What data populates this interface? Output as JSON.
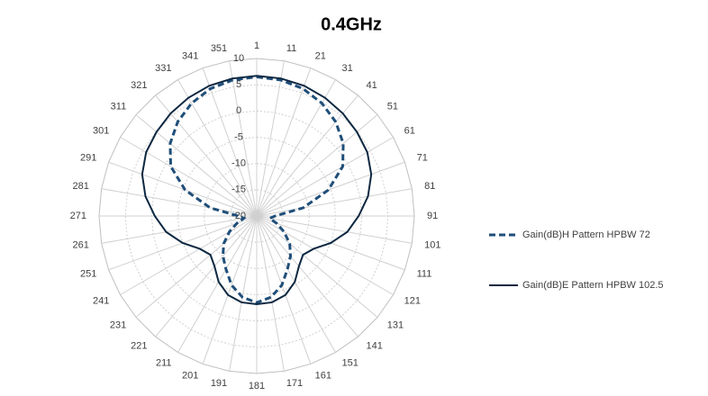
{
  "chart_data": {
    "type": "radar",
    "title": "0.4GHz",
    "categories": [
      "1",
      "11",
      "21",
      "31",
      "41",
      "51",
      "61",
      "71",
      "81",
      "91",
      "101",
      "111",
      "121",
      "131",
      "141",
      "151",
      "161",
      "171",
      "181",
      "191",
      "201",
      "211",
      "221",
      "231",
      "241",
      "251",
      "261",
      "271",
      "281",
      "291",
      "301",
      "311",
      "321",
      "331",
      "341",
      "351"
    ],
    "rlim": [
      -20,
      10
    ],
    "rticks": [
      -20,
      -15,
      -10,
      -5,
      0,
      5,
      10
    ],
    "grid": true,
    "legend": "right",
    "series": [
      {
        "name": "Gain(dB)H Pattern HPBW 72",
        "color": "#1f4e79",
        "dash": true,
        "values": [
          6.5,
          6.3,
          5.8,
          4.8,
          3.4,
          1.5,
          -1.1,
          -5.5,
          -11,
          -16.5,
          -17.5,
          -16,
          -14,
          -11.8,
          -10,
          -8.3,
          -6,
          -4.3,
          -3.5,
          -4.3,
          -6,
          -8.3,
          -10,
          -11.8,
          -14,
          -16,
          -17.5,
          -16.5,
          -11,
          -5.5,
          -1.1,
          1.5,
          3.4,
          4.8,
          5.8,
          6.3
        ]
      },
      {
        "name": "Gain(dB)E Pattern HPBW 102.5",
        "color": "#0d2841",
        "dash": false,
        "values": [
          6.7,
          6.6,
          6.4,
          6.0,
          5.5,
          4.9,
          4.3,
          3.2,
          1.5,
          -0.6,
          -2.5,
          -5,
          -7.5,
          -8.5,
          -7.5,
          -5.5,
          -4,
          -3.3,
          -3.2,
          -3.3,
          -4,
          -5.5,
          -7.5,
          -8.5,
          -7.5,
          -5,
          -2.5,
          -0.6,
          1.5,
          3.2,
          4.3,
          4.9,
          5.5,
          6.0,
          6.4,
          6.6
        ]
      }
    ]
  }
}
